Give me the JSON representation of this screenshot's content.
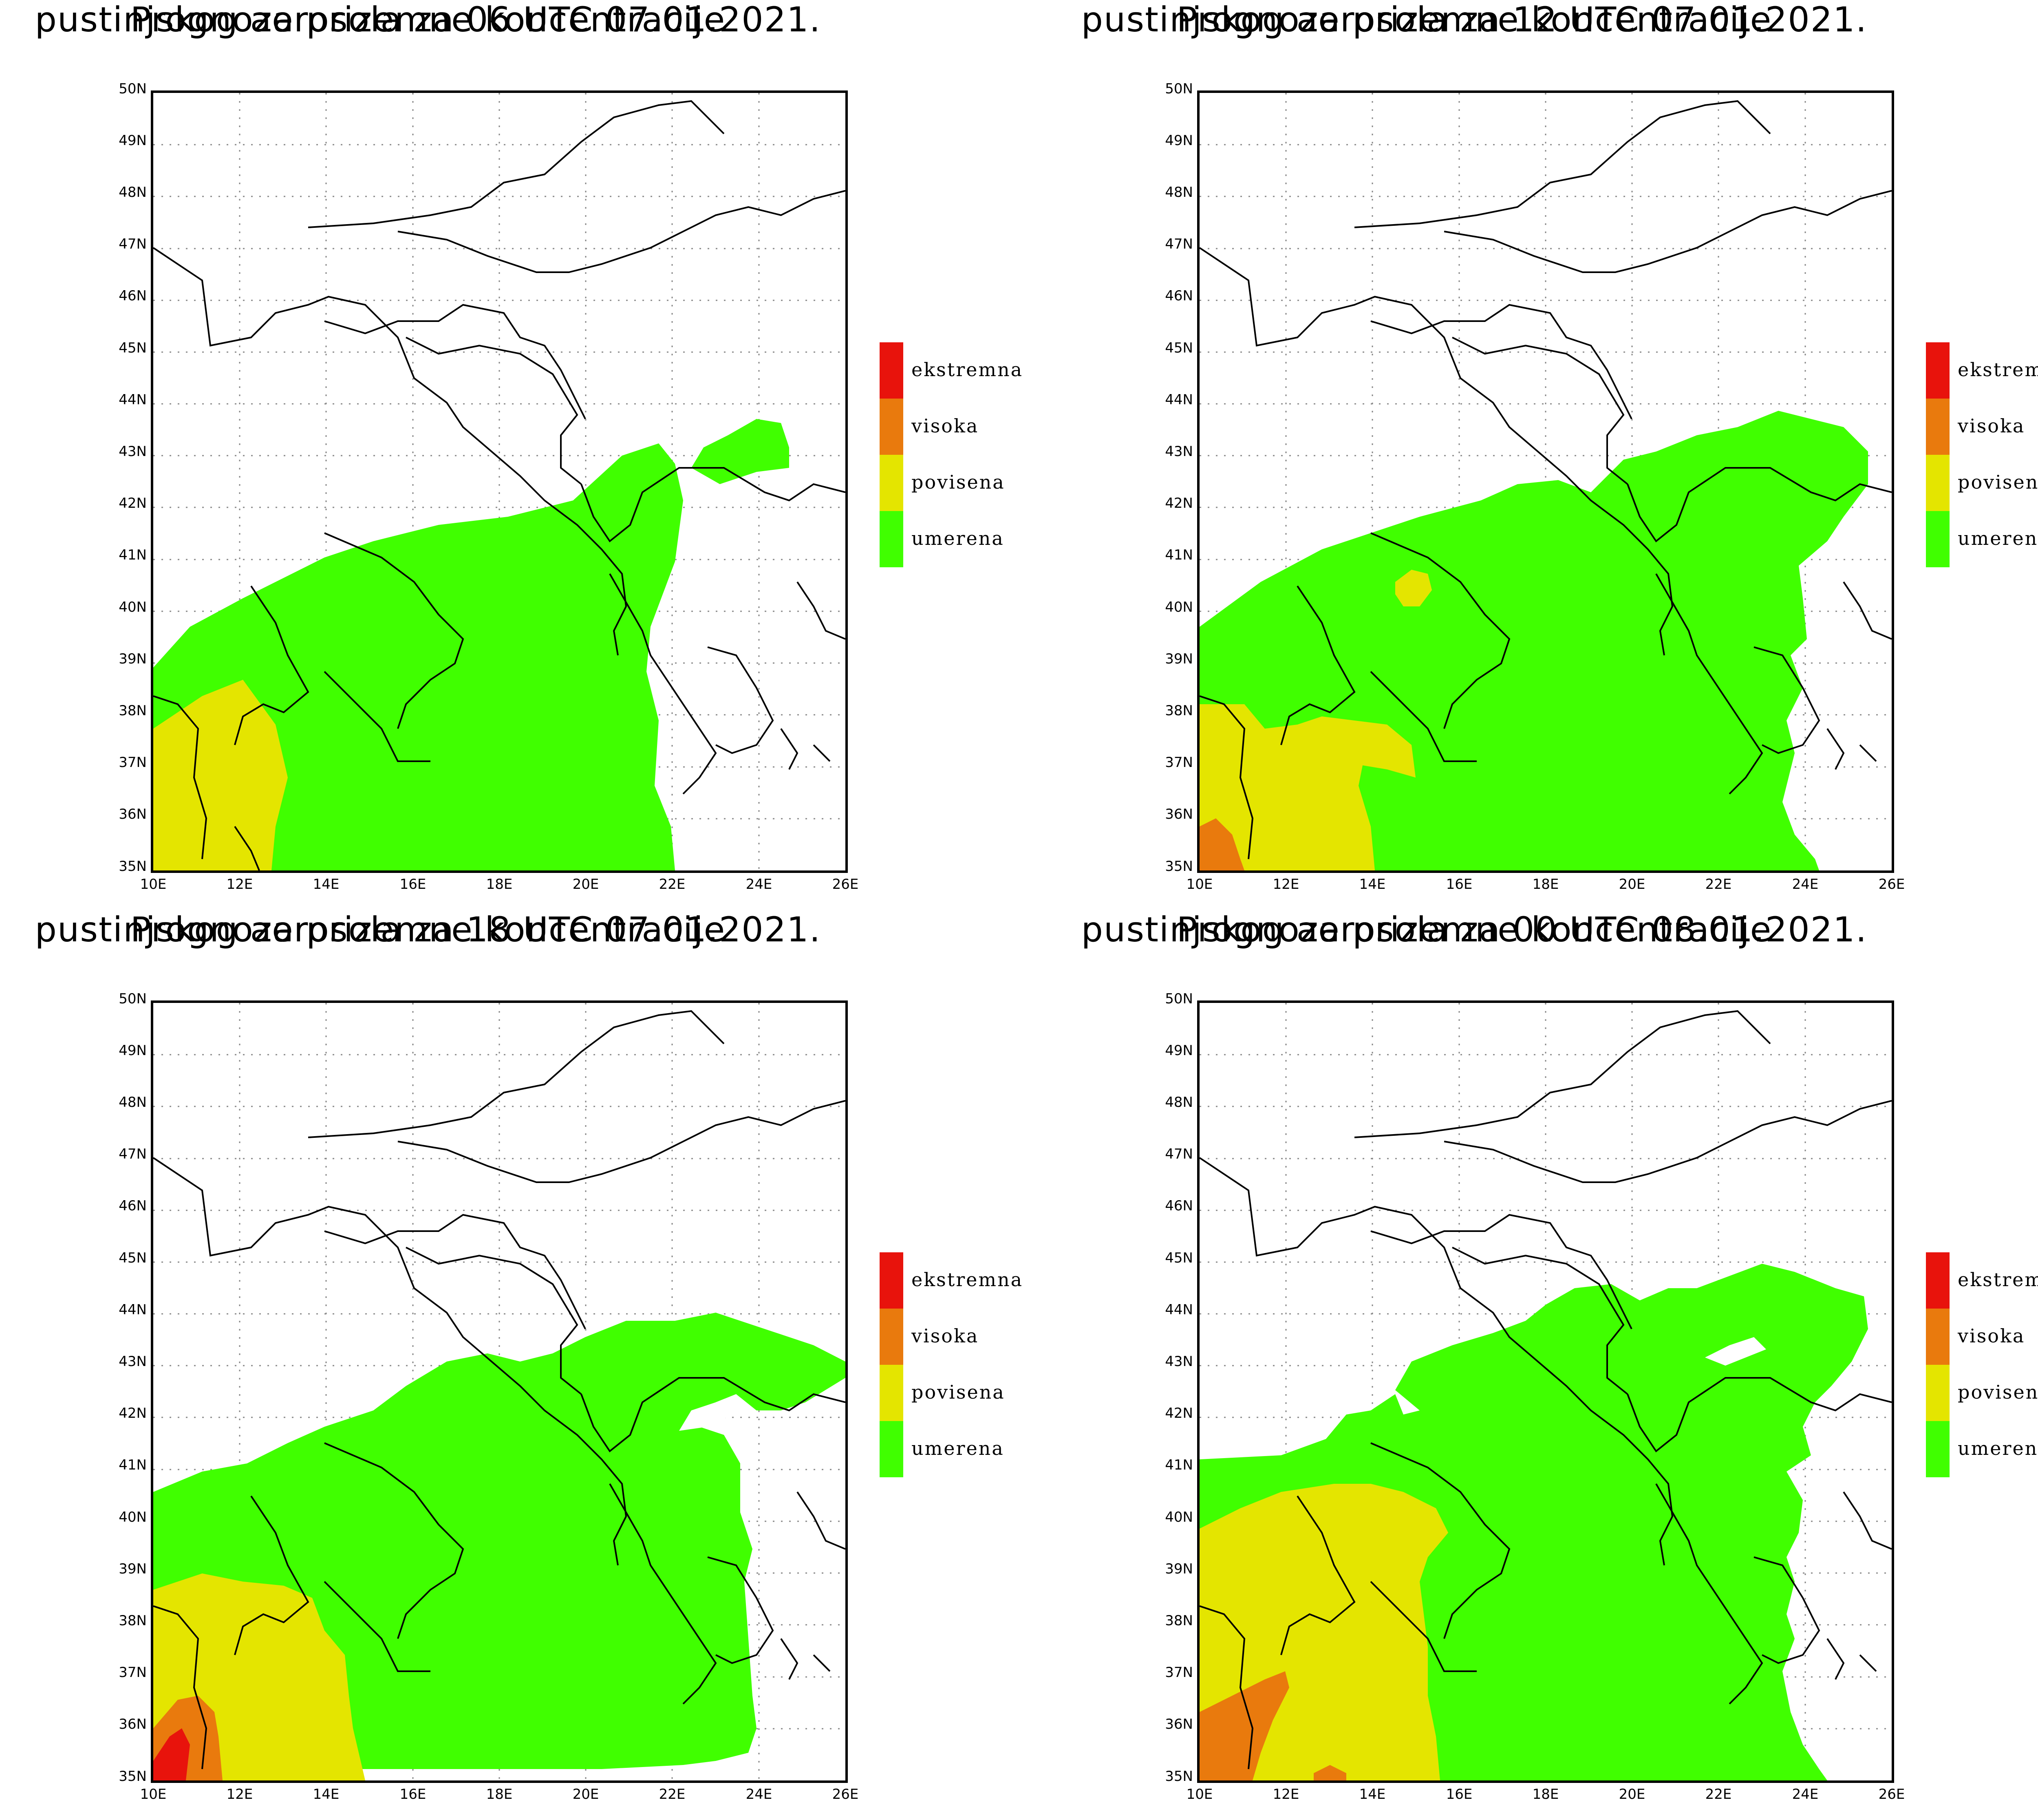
{
  "colors": {
    "ekstremna": "#e8130c",
    "visoka": "#e97a0d",
    "povisena": "#e4e500",
    "umerena": "#40ff00",
    "border_lines": "#000000",
    "grid": "#888888"
  },
  "legend": [
    {
      "key": "ekstremna",
      "label": "ekstremna"
    },
    {
      "key": "visoka",
      "label": "visoka"
    },
    {
      "key": "povisena",
      "label": "povisena"
    },
    {
      "key": "umerena",
      "label": "umerena"
    }
  ],
  "axes": {
    "lat_labels": [
      "50N",
      "49N",
      "48N",
      "47N",
      "46N",
      "45N",
      "44N",
      "43N",
      "42N",
      "41N",
      "40N",
      "39N",
      "38N",
      "37N",
      "36N",
      "35N"
    ],
    "lon_labels": [
      "10E",
      "12E",
      "14E",
      "16E",
      "18E",
      "20E",
      "22E",
      "24E",
      "26E"
    ],
    "lat_range": [
      35,
      50
    ],
    "lon_range": [
      10,
      26
    ]
  },
  "panels": [
    {
      "title_line1": "Prognoza prizemne koncentracije",
      "title_line2": "pustinjskog aerosola za 06 UTC 07.01.2021."
    },
    {
      "title_line1": "Prognoza prizemne koncentracije",
      "title_line2": "pustinjskog aerosola za 12 UTC 07.01.2021."
    },
    {
      "title_line1": "Prognoza prizemne koncentracije",
      "title_line2": "pustinjskog aerosola za 18 UTC 07.01.2021."
    },
    {
      "title_line1": "Prognoza prizemne koncentracije",
      "title_line2": "pustinjskog aerosola za 00 UTC 08.01.2021."
    }
  ]
}
